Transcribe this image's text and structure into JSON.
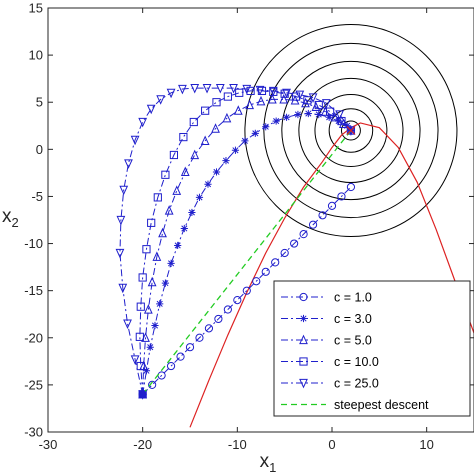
{
  "chart_data": {
    "type": "line",
    "title": "",
    "xlabel": {
      "base": "x",
      "sub": "1"
    },
    "ylabel": {
      "base": "x",
      "sub": "2"
    },
    "xlim": [
      -30,
      15
    ],
    "ylim": [
      -30,
      15
    ],
    "xticks": [
      -30,
      -20,
      -10,
      0,
      10
    ],
    "yticks": [
      -30,
      -25,
      -20,
      -15,
      -10,
      -5,
      0,
      5,
      10,
      15
    ],
    "xtick_labels": [
      "-30",
      "-20",
      "-10",
      "0",
      "10"
    ],
    "ytick_labels": [
      "-30",
      "-25",
      "-20",
      "-15",
      "-10",
      "-5",
      "0",
      "5",
      "10",
      "15"
    ],
    "grid": false,
    "legend_position": "bottom-right",
    "colors": {
      "series": "#1f1fcc",
      "steepest": "#22cc22",
      "constraint": "#dd2222",
      "contour": "#000000",
      "axes": "#262626"
    },
    "start_point": [
      -20,
      -26
    ],
    "optimum": [
      2,
      2
    ],
    "contours": {
      "center": [
        2,
        2
      ],
      "radii": [
        1,
        2.3,
        3.8,
        5.5,
        7.3,
        9.2,
        11.2
      ]
    },
    "constraint_curve": {
      "x": [
        -15,
        -13,
        -11,
        -9,
        -7,
        -5,
        -3,
        -1,
        0,
        1,
        2,
        3,
        5,
        7,
        9,
        11,
        13,
        15
      ],
      "y": [
        -29.5,
        -24.5,
        -19.7,
        -15.2,
        -11,
        -7.3,
        -4,
        -1.3,
        0.2,
        1.5,
        2.3,
        2.8,
        2.3,
        0.2,
        -3.5,
        -8.5,
        -14,
        -19.5
      ]
    },
    "series": [
      {
        "name": "c = 1.0",
        "marker": "circle",
        "x": [
          -20,
          -19,
          -18,
          -17,
          -16,
          -15,
          -14,
          -13,
          -12,
          -11,
          -10,
          -9,
          -8,
          -7,
          -6,
          -5,
          -4,
          -3,
          -2,
          -1,
          0,
          1,
          2
        ],
        "y": [
          -26,
          -25,
          -24,
          -23,
          -22,
          -21,
          -20,
          -19,
          -18,
          -17,
          -16,
          -15,
          -14,
          -13,
          -12,
          -11,
          -10,
          -9,
          -8,
          -7,
          -6,
          -5,
          -4
        ]
      },
      {
        "name": "c = 3.0",
        "marker": "star",
        "x": [
          -20,
          -19.6,
          -19.2,
          -18.7,
          -18.2,
          -17.6,
          -17,
          -16.3,
          -15.6,
          -14.8,
          -14,
          -13.1,
          -12.2,
          -11.2,
          -10.2,
          -9.2,
          -8.1,
          -7,
          -5.9,
          -4.8,
          -3.6,
          -2.5,
          -1.4,
          -0.3,
          0.7,
          1.6,
          2
        ],
        "y": [
          -26,
          -23.5,
          -21,
          -18.7,
          -16.4,
          -14.2,
          -12.1,
          -10.2,
          -8.4,
          -6.7,
          -5.1,
          -3.7,
          -2.4,
          -1.2,
          -0.1,
          0.9,
          1.7,
          2.4,
          3,
          3.4,
          3.7,
          3.8,
          3.7,
          3.4,
          3,
          2.5,
          2
        ]
      },
      {
        "name": "c = 5.0",
        "marker": "triangle-up",
        "x": [
          -20,
          -19.9,
          -19.7,
          -19.4,
          -19,
          -18.5,
          -17.9,
          -17.2,
          -16.4,
          -15.5,
          -14.5,
          -13.4,
          -12.3,
          -11.1,
          -9.9,
          -8.7,
          -7.5,
          -6.3,
          -5.1,
          -3.9,
          -2.8,
          -1.7,
          -0.7,
          0.3,
          1.2,
          2
        ],
        "y": [
          -26,
          -23,
          -20,
          -17,
          -14.1,
          -11.4,
          -8.9,
          -6.5,
          -4.4,
          -2.4,
          -0.6,
          0.9,
          2.2,
          3.3,
          4.1,
          4.7,
          5.1,
          5.3,
          5.3,
          5.2,
          4.9,
          4.5,
          4,
          3.4,
          2.7,
          2
        ]
      },
      {
        "name": "c = 10.0",
        "marker": "square",
        "x": [
          -20,
          -20.2,
          -20.3,
          -20.2,
          -20,
          -19.6,
          -19.1,
          -18.4,
          -17.6,
          -16.7,
          -15.7,
          -14.6,
          -13.4,
          -12.2,
          -11,
          -9.8,
          -8.6,
          -7.4,
          -6.2,
          -5,
          -3.8,
          -2.6,
          -1.4,
          -0.2,
          1,
          2
        ],
        "y": [
          -26,
          -23,
          -19.9,
          -16.7,
          -13.6,
          -10.6,
          -7.8,
          -5.1,
          -2.7,
          -0.6,
          1.3,
          2.9,
          4.1,
          5,
          5.6,
          6,
          6.2,
          6.2,
          6.1,
          5.9,
          5.6,
          5.2,
          4.7,
          4,
          3,
          2
        ]
      },
      {
        "name": "c = 25.0",
        "marker": "triangle-down",
        "x": [
          -20,
          -20.8,
          -21.6,
          -22.1,
          -22.4,
          -22.3,
          -22,
          -21.5,
          -20.8,
          -20,
          -19.1,
          -18.1,
          -17,
          -15.8,
          -14.5,
          -13.2,
          -11.8,
          -10.4,
          -9,
          -7.6,
          -6.2,
          -4.8,
          -3.4,
          -2,
          -0.6,
          0.8,
          2
        ],
        "y": [
          -26,
          -22.3,
          -18.5,
          -14.7,
          -11,
          -7.5,
          -4.3,
          -1.5,
          1,
          2.9,
          4.3,
          5.3,
          6,
          6.4,
          6.5,
          6.5,
          6.5,
          6.5,
          6.4,
          6.3,
          6.2,
          6,
          5.8,
          5.5,
          4.9,
          3.7,
          2
        ]
      },
      {
        "name": "steepest descent",
        "marker": "none",
        "x": [
          -20,
          2
        ],
        "y": [
          -26,
          2
        ]
      }
    ]
  }
}
